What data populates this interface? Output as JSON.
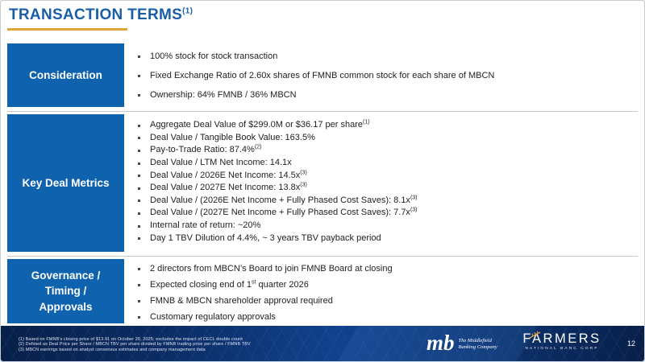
{
  "slide": {
    "title": {
      "text": "TRANSACTION TERMS",
      "sup": "(1)"
    }
  },
  "sections": [
    {
      "label": "Consideration",
      "bullets": [
        [
          {
            "t": "100% stock for stock transaction"
          }
        ],
        [
          {
            "t": "Fixed Exchange Ratio of 2.60x shares of FMNB common stock for each share of MBCN"
          }
        ],
        [
          {
            "t": "Ownership: 64% FMNB / 36% MBCN"
          }
        ]
      ]
    },
    {
      "label": "Key Deal Metrics",
      "bullets": [
        [
          {
            "t": "Aggregate Deal Value of $299.0M or $36.17 per share"
          },
          {
            "t": "(1)",
            "sup": true
          }
        ],
        [
          {
            "t": "Deal Value / Tangible Book Value: 163.5%"
          }
        ],
        [
          {
            "t": "Pay-to-Trade Ratio: 87.4%"
          },
          {
            "t": "(2)",
            "sup": true
          }
        ],
        [
          {
            "t": "Deal Value / LTM Net Income: 14.1x"
          }
        ],
        [
          {
            "t": "Deal Value / 2026E Net Income: 14.5x"
          },
          {
            "t": "(3)",
            "sup": true
          }
        ],
        [
          {
            "t": "Deal Value / 2027E Net Income: 13.8x"
          },
          {
            "t": "(3)",
            "sup": true
          }
        ],
        [
          {
            "t": "Deal Value / (2026E Net Income + Fully Phased Cost Saves): 8.1x"
          },
          {
            "t": "(3)",
            "sup": true
          }
        ],
        [
          {
            "t": "Deal Value / (2027E Net Income + Fully Phased Cost Saves): 7.7x"
          },
          {
            "t": "(3)",
            "sup": true
          }
        ],
        [
          {
            "t": "Internal rate of return: ~20%"
          }
        ],
        [
          {
            "t": "Day 1 TBV Dilution of 4.4%, ~ 3 years TBV payback period"
          }
        ]
      ]
    },
    {
      "label": "Governance / Timing / Approvals",
      "bullets": [
        [
          {
            "t": "2 directors from MBCN’s Board to join FMNB Board at closing"
          }
        ],
        [
          {
            "t": "Expected closing end of 1"
          },
          {
            "t": "st",
            "sup": true
          },
          {
            "t": " quarter 2026"
          }
        ],
        [
          {
            "t": "FMNB & MBCN shareholder approval required"
          }
        ],
        [
          {
            "t": "Customary regulatory approvals"
          }
        ]
      ]
    }
  ],
  "footer": {
    "footnotes": [
      "(1) Based on FMNB's closing price of $13.91 on October 20, 2025; excludes the impact of CECL double count",
      "(2) Defined as Deal Price per Share / MBCN TBV per share divided by FMNB trading price per share / FMNB TBV",
      "(3) MBCN earnings based on analyst consensus estimates and company management data"
    ],
    "middlefield_logo": {
      "monogram": "mb",
      "name_line1": "The Middlefield",
      "name_line2": "Banking Company"
    },
    "farmers_logo": {
      "name": "FARMERS",
      "subtitle": "NATIONAL BANC CORP",
      "wheat_icon": "wheat-sprig"
    },
    "page_number": "12"
  },
  "colors": {
    "title-blue": "#1b5ea8",
    "accent-gold": "#e0a23b",
    "label-blue": "#0f62ae",
    "body-text": "#212121",
    "footer-navy": "#0a2c63",
    "wheat-gold": "#d9a53e"
  }
}
